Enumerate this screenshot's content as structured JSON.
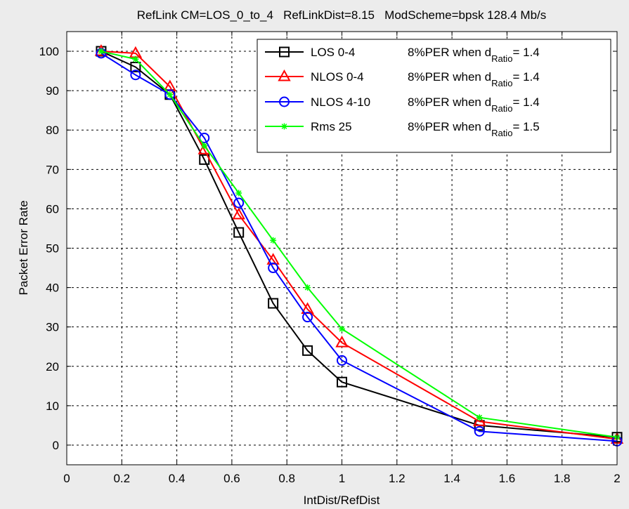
{
  "chart_data": {
    "type": "line",
    "title": "RefLink CM=LOS_0_to_4   RefLinkDist=8.15   ModScheme=bpsk 128.4 Mb/s",
    "xlabel": "IntDist/RefDist",
    "ylabel": "Packet Error Rate",
    "xlim": [
      0,
      2
    ],
    "ylim": [
      -5,
      105
    ],
    "grid": true,
    "legend_placement": "top-right",
    "x_ticks": [
      "0",
      "0.2",
      "0.4",
      "0.6",
      "0.8",
      "1",
      "1.2",
      "1.4",
      "1.6",
      "1.8",
      "2"
    ],
    "y_ticks": [
      "0",
      "10",
      "20",
      "30",
      "40",
      "50",
      "60",
      "70",
      "80",
      "90",
      "100"
    ],
    "series": [
      {
        "name": "LOS 0-4",
        "color": "#000000",
        "marker": "square",
        "legend_note": "8%PER when d",
        "legend_sub": "Ratio",
        "legend_value": "= 1.4",
        "x": [
          0.125,
          0.25,
          0.375,
          0.5,
          0.625,
          0.75,
          0.875,
          1.0,
          1.5,
          2.0
        ],
        "y": [
          100,
          96,
          89,
          72.5,
          54,
          36,
          24,
          16,
          5,
          2
        ]
      },
      {
        "name": "NLOS 0-4",
        "color": "#ff0000",
        "marker": "triangle",
        "legend_note": "8%PER when d",
        "legend_sub": "Ratio",
        "legend_value": "= 1.4",
        "x": [
          0.125,
          0.25,
          0.375,
          0.5,
          0.625,
          0.75,
          0.875,
          1.0,
          1.5,
          2.0
        ],
        "y": [
          100,
          99.5,
          91,
          75,
          58.5,
          47,
          34.5,
          26,
          6,
          1.5
        ]
      },
      {
        "name": "NLOS 4-10",
        "color": "#0000ff",
        "marker": "circle",
        "legend_note": "8%PER when d",
        "legend_sub": "Ratio",
        "legend_value": "= 1.4",
        "x": [
          0.125,
          0.25,
          0.375,
          0.5,
          0.625,
          0.75,
          0.875,
          1.0,
          1.5,
          2.0
        ],
        "y": [
          99.5,
          94,
          89,
          78,
          61.5,
          45,
          32.5,
          21.5,
          3.5,
          1
        ]
      },
      {
        "name": "Rms 25",
        "color": "#00ff00",
        "marker": "star",
        "legend_note": "8%PER when d",
        "legend_sub": "Ratio",
        "legend_value": "= 1.5",
        "x": [
          0.125,
          0.25,
          0.375,
          0.5,
          0.625,
          0.75,
          0.875,
          1.0,
          1.5,
          2.0
        ],
        "y": [
          100,
          98,
          89,
          76,
          64,
          52,
          40,
          29.5,
          7,
          2
        ]
      }
    ]
  }
}
